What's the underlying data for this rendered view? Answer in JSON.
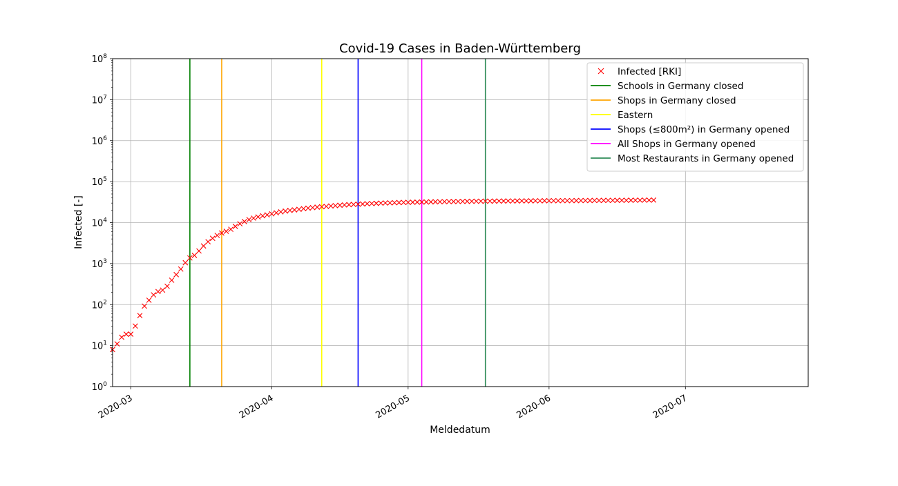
{
  "chart_data": {
    "type": "scatter",
    "title": "Covid-19 Cases in Baden-Württemberg",
    "xlabel": "Meldedatum",
    "ylabel": "Infected [-]",
    "yscale": "log",
    "ylim": [
      1,
      100000000
    ],
    "xlim": [
      "2020-02-26",
      "2020-07-28"
    ],
    "grid": true,
    "legend_position": "top-right",
    "x_ticks": [
      "2020-03-01",
      "2020-04-01",
      "2020-05-01",
      "2020-06-01",
      "2020-07-01"
    ],
    "x_tick_labels": [
      "2020-03",
      "2020-04",
      "2020-05",
      "2020-06",
      "2020-07"
    ],
    "y_tick_exponents": [
      0,
      1,
      2,
      3,
      4,
      5,
      6,
      7,
      8
    ],
    "series": [
      {
        "name": "Infected [RKI]",
        "marker": "x",
        "color": "#ff0000",
        "x": [
          "2020-02-26",
          "2020-02-27",
          "2020-02-28",
          "2020-02-29",
          "2020-03-01",
          "2020-03-02",
          "2020-03-03",
          "2020-03-04",
          "2020-03-05",
          "2020-03-06",
          "2020-03-07",
          "2020-03-08",
          "2020-03-09",
          "2020-03-10",
          "2020-03-11",
          "2020-03-12",
          "2020-03-13",
          "2020-03-14",
          "2020-03-15",
          "2020-03-16",
          "2020-03-17",
          "2020-03-18",
          "2020-03-19",
          "2020-03-20",
          "2020-03-21",
          "2020-03-22",
          "2020-03-23",
          "2020-03-24",
          "2020-03-25",
          "2020-03-26",
          "2020-03-27",
          "2020-03-28",
          "2020-03-29",
          "2020-03-30",
          "2020-03-31",
          "2020-04-01",
          "2020-04-02",
          "2020-04-03",
          "2020-04-04",
          "2020-04-05",
          "2020-04-06",
          "2020-04-07",
          "2020-04-08",
          "2020-04-09",
          "2020-04-10",
          "2020-04-11",
          "2020-04-12",
          "2020-04-13",
          "2020-04-14",
          "2020-04-15",
          "2020-04-16",
          "2020-04-17",
          "2020-04-18",
          "2020-04-19",
          "2020-04-20",
          "2020-04-21",
          "2020-04-22",
          "2020-04-23",
          "2020-04-24",
          "2020-04-25",
          "2020-04-26",
          "2020-04-27",
          "2020-04-28",
          "2020-04-29",
          "2020-04-30",
          "2020-05-01",
          "2020-05-02",
          "2020-05-03",
          "2020-05-04",
          "2020-05-05",
          "2020-05-06",
          "2020-05-07",
          "2020-05-08",
          "2020-05-09",
          "2020-05-10",
          "2020-05-11",
          "2020-05-12",
          "2020-05-13",
          "2020-05-14",
          "2020-05-15",
          "2020-05-16",
          "2020-05-17",
          "2020-05-18",
          "2020-05-19",
          "2020-05-20",
          "2020-05-21",
          "2020-05-22",
          "2020-05-23",
          "2020-05-24",
          "2020-05-25",
          "2020-05-26",
          "2020-05-27",
          "2020-05-28",
          "2020-05-29",
          "2020-05-30",
          "2020-05-31",
          "2020-06-01",
          "2020-06-02",
          "2020-06-03",
          "2020-06-04",
          "2020-06-05",
          "2020-06-06",
          "2020-06-07",
          "2020-06-08",
          "2020-06-09",
          "2020-06-10",
          "2020-06-11",
          "2020-06-12",
          "2020-06-13",
          "2020-06-14",
          "2020-06-15",
          "2020-06-16",
          "2020-06-17",
          "2020-06-18",
          "2020-06-19",
          "2020-06-20",
          "2020-06-21",
          "2020-06-22",
          "2020-06-23",
          "2020-06-24"
        ],
        "values": [
          8,
          11,
          16,
          19,
          19,
          30,
          54,
          92,
          128,
          173,
          208,
          226,
          281,
          395,
          539,
          737,
          1052,
          1376,
          1589,
          2041,
          2695,
          3421,
          4147,
          4884,
          5575,
          6143,
          6896,
          8102,
          9395,
          10627,
          11866,
          12855,
          13773,
          14655,
          15493,
          16373,
          17372,
          18364,
          19112,
          19906,
          20436,
          21098,
          21892,
          22572,
          23206,
          23872,
          24369,
          24879,
          25486,
          26026,
          26559,
          27057,
          27470,
          27815,
          28189,
          28530,
          28892,
          29203,
          29549,
          29855,
          30150,
          30399,
          30657,
          30876,
          31084,
          31270,
          31460,
          31637,
          31786,
          31941,
          32084,
          32233,
          32375,
          32498,
          32603,
          32721,
          32827,
          32942,
          33041,
          33131,
          33222,
          33304,
          33380,
          33455,
          33526,
          33596,
          33665,
          33731,
          33789,
          33843,
          33902,
          33962,
          34022,
          34078,
          34127,
          34177,
          34223,
          34270,
          34320,
          34369,
          34419,
          34466,
          34514,
          34564,
          34616,
          34668,
          34723,
          34774,
          34829,
          34886,
          34944,
          35003,
          35062,
          35123,
          35186,
          35250,
          35317,
          35385,
          35456,
          35531
        ]
      }
    ],
    "events": [
      {
        "name": "Schools in Germany closed",
        "date": "2020-03-14",
        "color": "#008000"
      },
      {
        "name": "Shops in Germany closed",
        "date": "2020-03-21",
        "color": "#ffa500"
      },
      {
        "name": "Eastern",
        "date": "2020-04-12",
        "color": "#ffff00"
      },
      {
        "name": "Shops (≤800m²) in Germany opened",
        "date": "2020-04-20",
        "color": "#0000ff"
      },
      {
        "name": "All Shops in Germany opened",
        "date": "2020-05-04",
        "color": "#ff00ff"
      },
      {
        "name": "Most Restaurants in Germany opened",
        "date": "2020-05-18",
        "color": "#2e8b57"
      }
    ]
  }
}
